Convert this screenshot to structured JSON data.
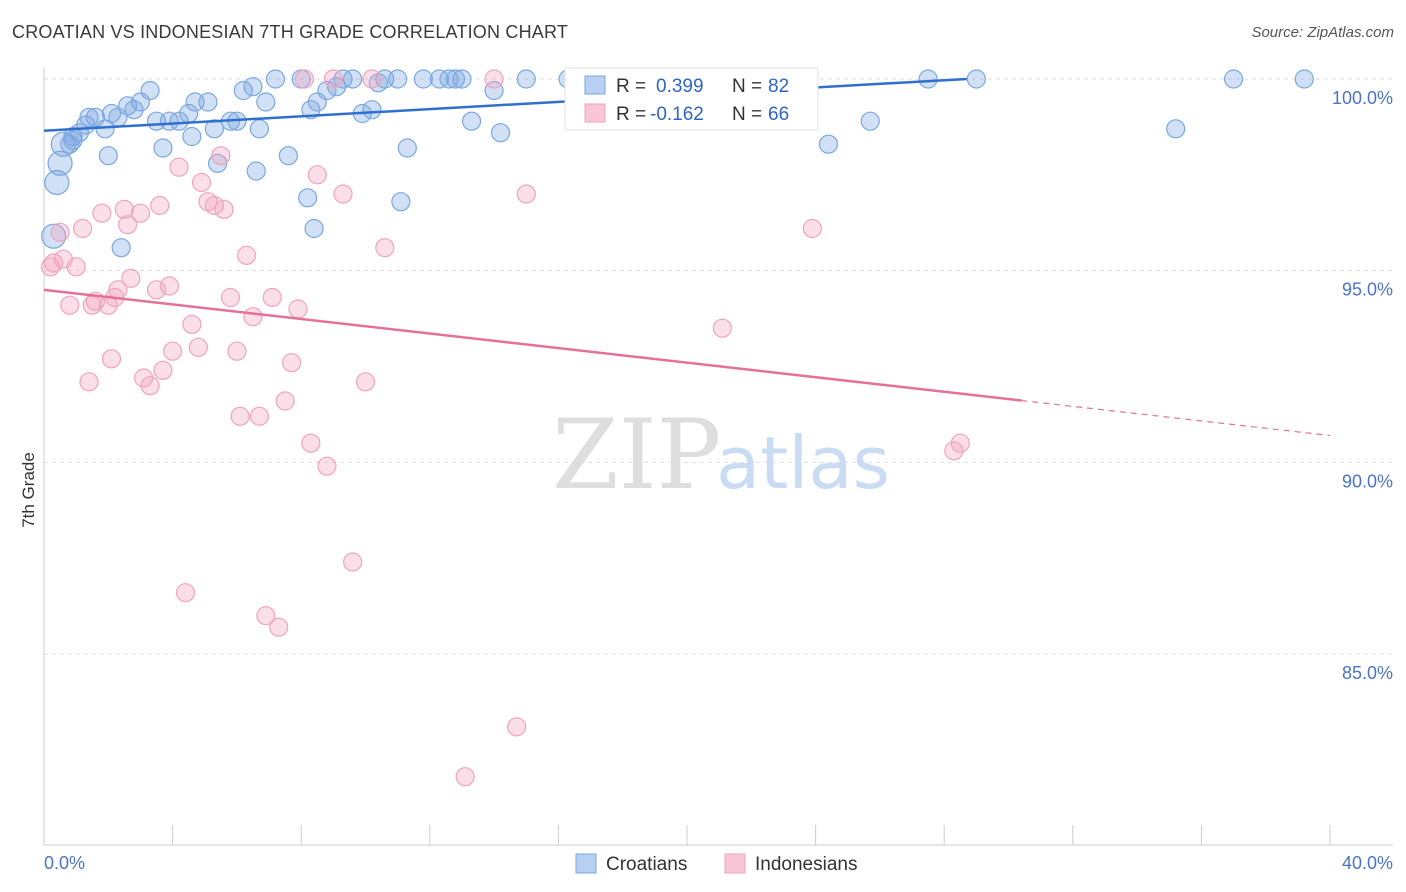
{
  "title": "CROATIAN VS INDONESIAN 7TH GRADE CORRELATION CHART",
  "source": "Source: ZipAtlas.com",
  "watermark": {
    "zip": "ZIP",
    "atlas": "atlas"
  },
  "chart_data": {
    "type": "scatter",
    "ylabel": "7th Grade",
    "xlim": [
      0,
      40
    ],
    "ylim": [
      80.5,
      100.7
    ],
    "x_tick_labels": {
      "left": "0.0%",
      "right": "40.0%"
    },
    "y_ticks": [
      {
        "value": 100,
        "label": "100.0%"
      },
      {
        "value": 95,
        "label": "95.0%"
      },
      {
        "value": 90,
        "label": "90.0%"
      },
      {
        "value": 85,
        "label": "85.0%"
      }
    ],
    "grid": "horizontal dashed",
    "legend_position": "top-center",
    "series": [
      {
        "name": "Croatians",
        "color": "#7aa7e0",
        "line_color": "#2f6fcf",
        "legend": {
          "r_label": "R =",
          "r_value": "0.399",
          "n_label": "N =",
          "n_value": "82"
        },
        "trend": {
          "x0": 0,
          "y0": 98.65,
          "x1": 28.7,
          "y1": 100.0,
          "solid_to": 28.7
        },
        "points": [
          [
            0.3,
            95.9
          ],
          [
            0.4,
            97.3
          ],
          [
            0.5,
            97.8
          ],
          [
            0.6,
            98.3
          ],
          [
            0.8,
            98.3
          ],
          [
            0.9,
            98.5
          ],
          [
            1.1,
            98.6
          ],
          [
            1.3,
            98.8
          ],
          [
            1.4,
            99.0
          ],
          [
            2.1,
            99.1
          ],
          [
            2.3,
            99.0
          ],
          [
            2.6,
            99.3
          ],
          [
            2.8,
            99.2
          ],
          [
            3.0,
            99.4
          ],
          [
            3.3,
            99.7
          ],
          [
            3.5,
            98.9
          ],
          [
            3.9,
            98.9
          ],
          [
            4.2,
            98.9
          ],
          [
            4.5,
            99.1
          ],
          [
            4.7,
            99.4
          ],
          [
            5.1,
            99.4
          ],
          [
            5.3,
            98.7
          ],
          [
            5.8,
            98.9
          ],
          [
            6.0,
            98.9
          ],
          [
            6.2,
            99.7
          ],
          [
            6.5,
            99.8
          ],
          [
            6.7,
            98.7
          ],
          [
            6.9,
            99.4
          ],
          [
            7.2,
            100.0
          ],
          [
            7.6,
            98.0
          ],
          [
            8.0,
            100.0
          ],
          [
            8.3,
            99.2
          ],
          [
            8.5,
            99.4
          ],
          [
            8.8,
            99.7
          ],
          [
            9.1,
            99.8
          ],
          [
            9.3,
            100.0
          ],
          [
            9.6,
            100.0
          ],
          [
            9.9,
            99.1
          ],
          [
            10.2,
            99.2
          ],
          [
            10.6,
            100.0
          ],
          [
            11.0,
            100.0
          ],
          [
            11.8,
            100.0
          ],
          [
            12.3,
            100.0
          ],
          [
            12.6,
            100.0
          ],
          [
            13.0,
            100.0
          ],
          [
            13.3,
            98.9
          ],
          [
            14.0,
            99.7
          ],
          [
            14.2,
            98.6
          ],
          [
            15.0,
            100.0
          ],
          [
            16.5,
            100.0
          ],
          [
            17.0,
            100.0
          ],
          [
            18.0,
            100.0
          ],
          [
            18.5,
            100.0
          ],
          [
            19.0,
            100.0
          ],
          [
            21.4,
            100.0
          ],
          [
            24.4,
            98.3
          ],
          [
            25.7,
            98.9
          ],
          [
            27.5,
            100.0
          ],
          [
            29.0,
            100.0
          ],
          [
            35.2,
            98.7
          ],
          [
            37.0,
            100.0
          ],
          [
            39.2,
            100.0
          ],
          [
            2.0,
            98.0
          ],
          [
            3.7,
            98.2
          ],
          [
            6.6,
            97.6
          ],
          [
            8.2,
            96.9
          ],
          [
            8.4,
            96.1
          ],
          [
            2.4,
            95.6
          ],
          [
            11.1,
            96.8
          ],
          [
            11.3,
            98.2
          ],
          [
            0.9,
            98.4
          ],
          [
            1.9,
            98.7
          ],
          [
            4.6,
            98.5
          ],
          [
            5.4,
            97.8
          ],
          [
            10.4,
            99.9
          ],
          [
            12.8,
            100.0
          ],
          [
            16.3,
            100.0
          ],
          [
            17.5,
            100.0
          ],
          [
            20.2,
            100.0
          ],
          [
            22.7,
            100.0
          ],
          [
            23.3,
            100.0
          ],
          [
            1.6,
            99.0
          ]
        ]
      },
      {
        "name": "Indonesians",
        "color": "#f0a3bd",
        "line_color": "#e5709a",
        "legend": {
          "r_label": "R =",
          "r_value": "-0.162",
          "n_label": "N =",
          "n_value": "66"
        },
        "trend": {
          "x0": 0,
          "y0": 94.5,
          "x1": 40,
          "y1": 90.7,
          "solid_to": 30.4
        },
        "points": [
          [
            0.2,
            95.1
          ],
          [
            0.3,
            95.2
          ],
          [
            0.5,
            96.0
          ],
          [
            0.6,
            95.3
          ],
          [
            0.8,
            94.1
          ],
          [
            1.0,
            95.1
          ],
          [
            1.2,
            96.1
          ],
          [
            1.4,
            92.1
          ],
          [
            1.5,
            94.1
          ],
          [
            1.6,
            94.2
          ],
          [
            1.8,
            96.5
          ],
          [
            2.0,
            94.1
          ],
          [
            2.1,
            92.7
          ],
          [
            2.2,
            94.3
          ],
          [
            2.3,
            94.5
          ],
          [
            2.5,
            96.6
          ],
          [
            2.6,
            96.2
          ],
          [
            2.7,
            94.8
          ],
          [
            3.0,
            96.5
          ],
          [
            3.1,
            92.2
          ],
          [
            3.3,
            92.0
          ],
          [
            3.5,
            94.5
          ],
          [
            3.6,
            96.7
          ],
          [
            3.7,
            92.4
          ],
          [
            3.9,
            94.6
          ],
          [
            4.0,
            92.9
          ],
          [
            4.2,
            97.7
          ],
          [
            4.4,
            86.6
          ],
          [
            4.6,
            93.6
          ],
          [
            4.8,
            93.0
          ],
          [
            4.9,
            97.3
          ],
          [
            5.1,
            96.8
          ],
          [
            5.3,
            96.7
          ],
          [
            5.5,
            98.0
          ],
          [
            5.6,
            96.6
          ],
          [
            5.8,
            94.3
          ],
          [
            6.0,
            92.9
          ],
          [
            6.1,
            91.2
          ],
          [
            6.3,
            95.4
          ],
          [
            6.5,
            93.8
          ],
          [
            6.7,
            91.2
          ],
          [
            6.9,
            86.0
          ],
          [
            7.1,
            94.3
          ],
          [
            7.3,
            85.7
          ],
          [
            7.5,
            91.6
          ],
          [
            7.7,
            92.6
          ],
          [
            7.9,
            94.0
          ],
          [
            8.1,
            100.0
          ],
          [
            8.3,
            90.5
          ],
          [
            8.5,
            97.5
          ],
          [
            8.8,
            89.9
          ],
          [
            9.0,
            100.0
          ],
          [
            9.3,
            97.0
          ],
          [
            9.6,
            87.4
          ],
          [
            10.0,
            92.1
          ],
          [
            10.2,
            100.0
          ],
          [
            10.6,
            95.6
          ],
          [
            13.1,
            81.8
          ],
          [
            14.0,
            100.0
          ],
          [
            14.7,
            83.1
          ],
          [
            15.0,
            97.0
          ],
          [
            20.2,
            100.0
          ],
          [
            21.1,
            93.5
          ],
          [
            23.9,
            96.1
          ],
          [
            28.3,
            90.3
          ],
          [
            28.5,
            90.5
          ]
        ]
      }
    ]
  }
}
